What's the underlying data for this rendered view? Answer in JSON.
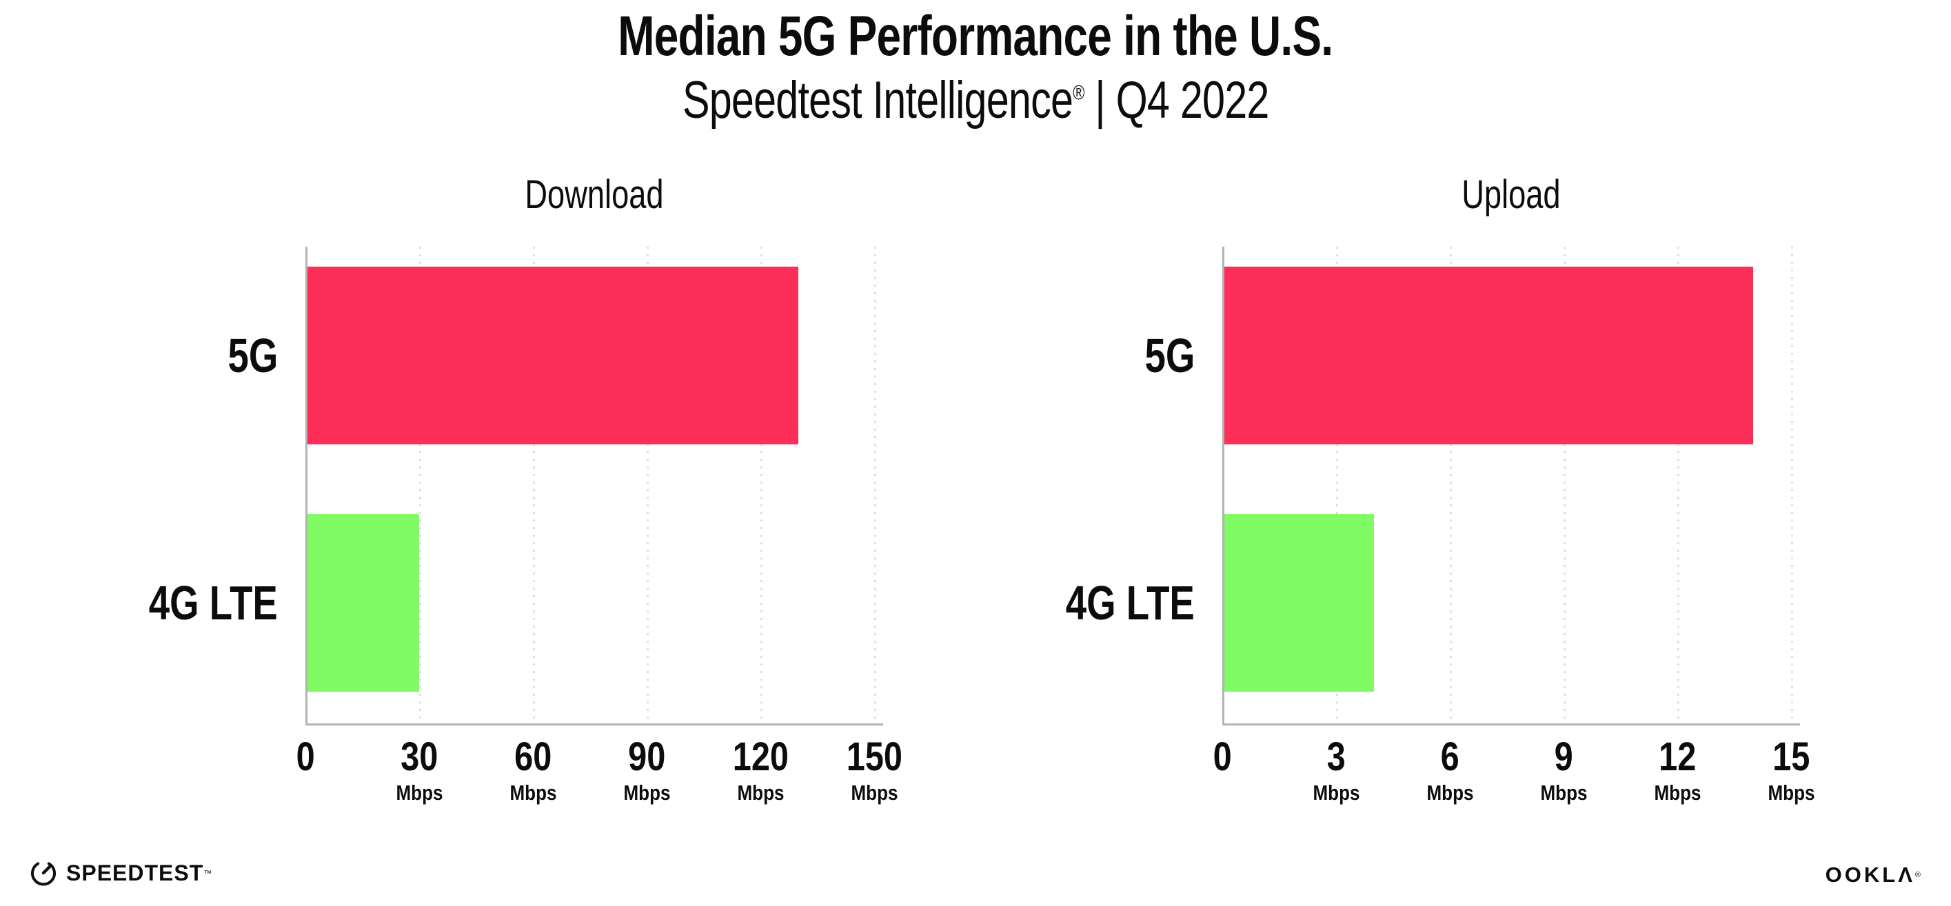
{
  "header": {
    "title": "Median 5G Performance in the U.S.",
    "subtitle_brand": "Speedtest Intelligence",
    "subtitle_reg": "®",
    "subtitle_rest": " | Q4 2022"
  },
  "footer": {
    "speedtest_label": "SPEEDTEST",
    "speedtest_mark": "™",
    "speedtest_gauge_icon": "gauge-icon",
    "ookla_label": "OOKLΛ",
    "ookla_mark": "®"
  },
  "colors": {
    "bar_5g": "#FD2E57",
    "bar_4g_lte": "#80FB64",
    "axis": "#b3b3b3",
    "gridline": "#dedee8",
    "text": "#0c0c0c",
    "background": "#ffffff"
  },
  "chart_data": [
    {
      "type": "bar",
      "orientation": "horizontal",
      "title": "Download",
      "categories": [
        "5G",
        "4G LTE"
      ],
      "values": [
        130,
        30
      ],
      "series_colors": [
        "#FD2E57",
        "#80FB64"
      ],
      "unit": "Mbps",
      "xlim": [
        0,
        150
      ],
      "xticks": [
        0,
        30,
        60,
        90,
        120,
        150
      ],
      "grid": "vertical-dotted",
      "legend": "none"
    },
    {
      "type": "bar",
      "orientation": "horizontal",
      "title": "Upload",
      "categories": [
        "5G",
        "4G LTE"
      ],
      "values": [
        14,
        4
      ],
      "series_colors": [
        "#FD2E57",
        "#80FB64"
      ],
      "unit": "Mbps",
      "xlim": [
        0,
        15
      ],
      "xticks": [
        0,
        3,
        6,
        9,
        12,
        15
      ],
      "grid": "vertical-dotted",
      "legend": "none"
    }
  ]
}
